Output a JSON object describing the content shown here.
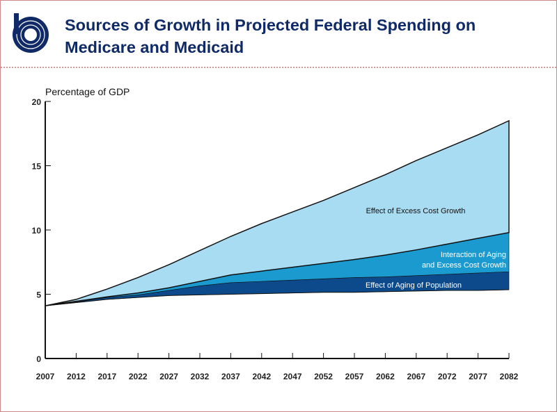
{
  "header": {
    "title_line1": "Sources of Growth in Projected Federal Spending on",
    "title_line2": "Medicare and Medicaid"
  },
  "chart_data": {
    "type": "area",
    "ylabel": "Percentage of GDP",
    "ylim": [
      0,
      20
    ],
    "yticks": [
      0,
      5,
      10,
      15,
      20
    ],
    "x": [
      2007,
      2012,
      2017,
      2022,
      2027,
      2032,
      2037,
      2042,
      2047,
      2052,
      2057,
      2062,
      2067,
      2072,
      2077,
      2082
    ],
    "xlim": [
      2007,
      2082
    ],
    "baseline": [
      4.1,
      4.35,
      4.6,
      4.75,
      4.9,
      4.95,
      5.0,
      5.05,
      5.1,
      5.15,
      5.15,
      5.2,
      5.25,
      5.3,
      5.3,
      5.35
    ],
    "series": [
      {
        "name": "Effect of Aging of Population",
        "color": "#0d4a8c",
        "top": [
          4.1,
          4.4,
          4.75,
          4.95,
          5.3,
          5.65,
          5.9,
          6.0,
          6.1,
          6.2,
          6.3,
          6.35,
          6.45,
          6.55,
          6.65,
          6.75
        ]
      },
      {
        "name": "Interaction of Aging and Excess Cost Growth",
        "label_lines": [
          "Interaction of Aging",
          "and Excess Cost Growth"
        ],
        "color": "#1b9ad0",
        "top": [
          4.1,
          4.45,
          4.8,
          5.1,
          5.5,
          6.0,
          6.5,
          6.8,
          7.1,
          7.4,
          7.7,
          8.05,
          8.45,
          8.9,
          9.35,
          9.8
        ]
      },
      {
        "name": "Effect of Excess Cost Growth",
        "color": "#a8dcf2",
        "top": [
          4.1,
          4.6,
          5.4,
          6.3,
          7.3,
          8.4,
          9.5,
          10.5,
          11.4,
          12.3,
          13.3,
          14.3,
          15.4,
          16.4,
          17.4,
          18.5
        ]
      }
    ]
  }
}
